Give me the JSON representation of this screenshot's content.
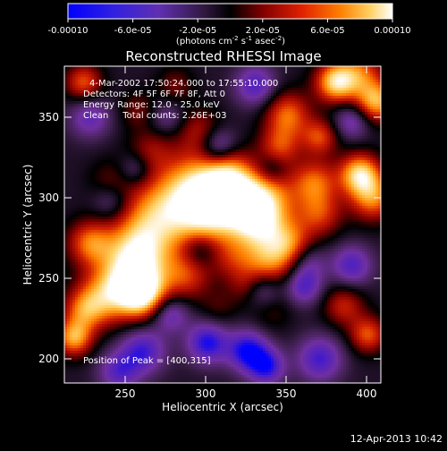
{
  "colorbar": {
    "tick_labels": [
      "-0.00010",
      "-6.0e-05",
      "-2.0e-05",
      "2.0e-05",
      "6.0e-05",
      "0.00010"
    ],
    "units_main": "(photons cm",
    "units_exp1": "-2",
    "units_mid": " s",
    "units_exp2": "-1",
    "units_end": " asec",
    "units_exp3": "-2",
    "units_close": ")"
  },
  "title": "Reconstructed RHESSI Image",
  "info": {
    "time_range": "4-Mar-2002 17:50:24.000 to 17:55:10.000",
    "detectors": "Detectors: 4F 5F 6F 7F 8F, Att 0",
    "energy": "Energy Range: 12.0 - 25.0 keV",
    "clean_counts": "Clean     Total counts: 2.26E+03",
    "peak": "Position of Peak = [400,315]"
  },
  "axes": {
    "xlabel": "Heliocentric X (arcsec)",
    "ylabel": "Heliocentric Y (arcsec)",
    "xticks": [
      "250",
      "300",
      "350",
      "400"
    ],
    "yticks": [
      "200",
      "250",
      "300",
      "350"
    ],
    "xrange": [
      216,
      413
    ],
    "yrange": [
      185,
      382
    ]
  },
  "footer": {
    "date": "12-Apr-2013 10:42"
  },
  "image": {
    "colormap": [
      "#0000ff",
      "#5020c0",
      "#7030a0",
      "#402050",
      "#000000",
      "#800000",
      "#d02000",
      "#ff8000",
      "#ffd060",
      "#ffffff"
    ],
    "blobs": [
      {
        "x": 298,
        "y": 308,
        "a": 0.85,
        "r": 15
      },
      {
        "x": 318,
        "y": 304,
        "a": 1.0,
        "r": 12
      },
      {
        "x": 340,
        "y": 300,
        "a": 0.85,
        "r": 14
      },
      {
        "x": 275,
        "y": 290,
        "a": 0.8,
        "r": 16
      },
      {
        "x": 262,
        "y": 268,
        "a": 0.75,
        "r": 14
      },
      {
        "x": 305,
        "y": 286,
        "a": 0.75,
        "r": 14
      },
      {
        "x": 335,
        "y": 285,
        "a": 0.8,
        "r": 12
      },
      {
        "x": 258,
        "y": 250,
        "a": 0.85,
        "r": 14
      },
      {
        "x": 264,
        "y": 240,
        "a": 0.9,
        "r": 10
      },
      {
        "x": 240,
        "y": 238,
        "a": 0.65,
        "r": 12
      },
      {
        "x": 292,
        "y": 252,
        "a": 0.55,
        "r": 11
      },
      {
        "x": 232,
        "y": 272,
        "a": 0.7,
        "r": 10
      },
      {
        "x": 342,
        "y": 260,
        "a": 0.7,
        "r": 12
      },
      {
        "x": 356,
        "y": 272,
        "a": 0.6,
        "r": 10
      },
      {
        "x": 375,
        "y": 290,
        "a": 0.55,
        "r": 10
      },
      {
        "x": 372,
        "y": 310,
        "a": 0.65,
        "r": 10
      },
      {
        "x": 400,
        "y": 315,
        "a": 1.0,
        "r": 9
      },
      {
        "x": 408,
        "y": 300,
        "a": 0.75,
        "r": 10
      },
      {
        "x": 410,
        "y": 360,
        "a": 0.9,
        "r": 9
      },
      {
        "x": 385,
        "y": 372,
        "a": 1.0,
        "r": 9
      },
      {
        "x": 400,
        "y": 378,
        "a": 0.6,
        "r": 10
      },
      {
        "x": 355,
        "y": 352,
        "a": 0.7,
        "r": 10
      },
      {
        "x": 350,
        "y": 332,
        "a": 0.55,
        "r": 9
      },
      {
        "x": 375,
        "y": 338,
        "a": 0.6,
        "r": 8
      },
      {
        "x": 405,
        "y": 215,
        "a": 0.65,
        "r": 8
      },
      {
        "x": 390,
        "y": 233,
        "a": 0.5,
        "r": 9
      },
      {
        "x": 228,
        "y": 230,
        "a": 0.55,
        "r": 9
      },
      {
        "x": 222,
        "y": 213,
        "a": 0.85,
        "r": 8
      },
      {
        "x": 228,
        "y": 372,
        "a": 0.65,
        "r": 8
      },
      {
        "x": 270,
        "y": 330,
        "a": 0.35,
        "r": 10
      },
      {
        "x": 300,
        "y": 342,
        "a": 0.4,
        "r": 10
      },
      {
        "x": 318,
        "y": 322,
        "a": 0.3,
        "r": 9
      },
      {
        "x": 285,
        "y": 370,
        "a": 0.3,
        "r": 8
      },
      {
        "x": 262,
        "y": 355,
        "a": 0.3,
        "r": 8
      },
      {
        "x": 245,
        "y": 310,
        "a": 0.25,
        "r": 10
      },
      {
        "x": 320,
        "y": 262,
        "a": 0.3,
        "r": 9
      },
      {
        "x": 328,
        "y": 245,
        "a": 0.25,
        "r": 8
      },
      {
        "x": 345,
        "y": 230,
        "a": 0.2,
        "r": 9
      },
      {
        "x": 312,
        "y": 232,
        "a": 0.2,
        "r": 8
      },
      {
        "x": 305,
        "y": 210,
        "a": -0.7,
        "r": 9
      },
      {
        "x": 265,
        "y": 205,
        "a": -0.6,
        "r": 10
      },
      {
        "x": 250,
        "y": 192,
        "a": -0.5,
        "r": 9
      },
      {
        "x": 330,
        "y": 205,
        "a": -0.75,
        "r": 9
      },
      {
        "x": 342,
        "y": 195,
        "a": -0.65,
        "r": 8
      },
      {
        "x": 375,
        "y": 200,
        "a": -0.6,
        "r": 10
      },
      {
        "x": 365,
        "y": 245,
        "a": -0.55,
        "r": 8
      },
      {
        "x": 282,
        "y": 228,
        "a": -0.5,
        "r": 8
      },
      {
        "x": 340,
        "y": 243,
        "a": -0.45,
        "r": 8
      },
      {
        "x": 395,
        "y": 258,
        "a": -0.55,
        "r": 9
      },
      {
        "x": 368,
        "y": 260,
        "a": -0.35,
        "r": 8
      },
      {
        "x": 300,
        "y": 268,
        "a": -0.4,
        "r": 8
      },
      {
        "x": 312,
        "y": 332,
        "a": -0.6,
        "r": 8
      },
      {
        "x": 335,
        "y": 370,
        "a": -0.55,
        "r": 9
      },
      {
        "x": 395,
        "y": 348,
        "a": -0.45,
        "r": 8
      },
      {
        "x": 245,
        "y": 298,
        "a": -0.35,
        "r": 8
      },
      {
        "x": 260,
        "y": 318,
        "a": -0.35,
        "r": 7
      },
      {
        "x": 232,
        "y": 350,
        "a": -0.45,
        "r": 9
      },
      {
        "x": 345,
        "y": 318,
        "a": -0.35,
        "r": 7
      },
      {
        "x": 280,
        "y": 350,
        "a": -0.3,
        "r": 8
      }
    ]
  }
}
